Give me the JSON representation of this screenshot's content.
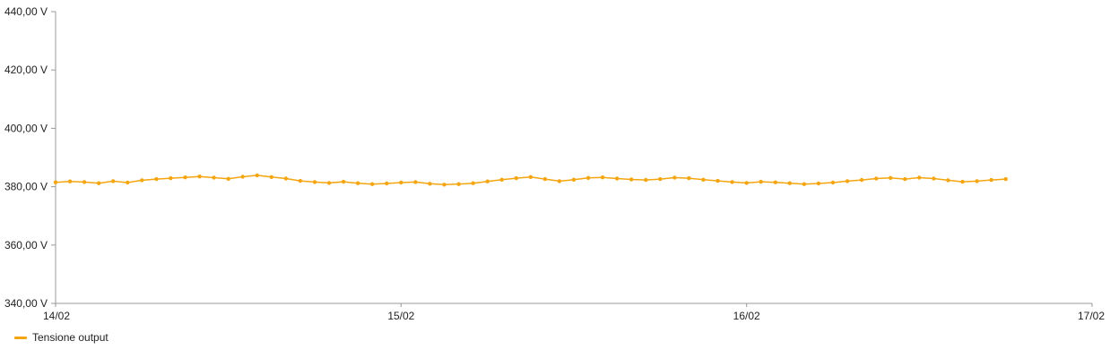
{
  "chart_data": {
    "type": "line",
    "title": "",
    "xlabel": "",
    "ylabel": "",
    "x_ticks": [
      "14/02",
      "15/02",
      "16/02",
      "17/02"
    ],
    "y_ticks": [
      "340,00 V",
      "360,00 V",
      "380,00 V",
      "400,00 V",
      "420,00 V",
      "440,00 V"
    ],
    "ylim": [
      340,
      440
    ],
    "xlim": [
      "2024-02-14T00:00",
      "2024-02-17T00:00"
    ],
    "grid": false,
    "legend_position": "bottom-left",
    "series": [
      {
        "name": "Tensione output",
        "color": "#f5a50f",
        "x": [
          "2024-02-14T00:00",
          "2024-02-14T01:00",
          "2024-02-14T02:00",
          "2024-02-14T03:00",
          "2024-02-14T04:00",
          "2024-02-14T05:00",
          "2024-02-14T06:00",
          "2024-02-14T07:00",
          "2024-02-14T08:00",
          "2024-02-14T09:00",
          "2024-02-14T10:00",
          "2024-02-14T11:00",
          "2024-02-14T12:00",
          "2024-02-14T13:00",
          "2024-02-14T14:00",
          "2024-02-14T15:00",
          "2024-02-14T16:00",
          "2024-02-14T17:00",
          "2024-02-14T18:00",
          "2024-02-14T19:00",
          "2024-02-14T20:00",
          "2024-02-14T21:00",
          "2024-02-14T22:00",
          "2024-02-14T23:00",
          "2024-02-15T00:00",
          "2024-02-15T01:00",
          "2024-02-15T02:00",
          "2024-02-15T03:00",
          "2024-02-15T04:00",
          "2024-02-15T05:00",
          "2024-02-15T06:00",
          "2024-02-15T07:00",
          "2024-02-15T08:00",
          "2024-02-15T09:00",
          "2024-02-15T10:00",
          "2024-02-15T11:00",
          "2024-02-15T12:00",
          "2024-02-15T13:00",
          "2024-02-15T14:00",
          "2024-02-15T15:00",
          "2024-02-15T16:00",
          "2024-02-15T17:00",
          "2024-02-15T18:00",
          "2024-02-15T19:00",
          "2024-02-15T20:00",
          "2024-02-15T21:00",
          "2024-02-15T22:00",
          "2024-02-15T23:00",
          "2024-02-16T00:00",
          "2024-02-16T01:00",
          "2024-02-16T02:00",
          "2024-02-16T03:00",
          "2024-02-16T04:00",
          "2024-02-16T05:00",
          "2024-02-16T06:00",
          "2024-02-16T07:00",
          "2024-02-16T08:00",
          "2024-02-16T09:00",
          "2024-02-16T10:00",
          "2024-02-16T11:00",
          "2024-02-16T12:00",
          "2024-02-16T13:00",
          "2024-02-16T14:00",
          "2024-02-16T15:00",
          "2024-02-16T16:00",
          "2024-02-16T17:00",
          "2024-02-16T18:00"
        ],
        "values": [
          381.5,
          381.8,
          381.6,
          381.2,
          381.9,
          381.4,
          382.2,
          382.6,
          382.9,
          383.2,
          383.5,
          383.1,
          382.7,
          383.4,
          383.9,
          383.3,
          382.8,
          382.0,
          381.6,
          381.3,
          381.7,
          381.2,
          380.9,
          381.1,
          381.4,
          381.6,
          381.0,
          380.7,
          380.9,
          381.2,
          381.8,
          382.4,
          382.9,
          383.3,
          382.6,
          381.9,
          382.4,
          383.0,
          383.2,
          382.8,
          382.5,
          382.3,
          382.6,
          383.1,
          382.9,
          382.4,
          382.0,
          381.6,
          381.3,
          381.7,
          381.5,
          381.2,
          380.9,
          381.1,
          381.4,
          381.9,
          382.3,
          382.8,
          383.0,
          382.6,
          383.1,
          382.8,
          382.2,
          381.7,
          381.9,
          382.3,
          382.6
        ]
      }
    ]
  }
}
